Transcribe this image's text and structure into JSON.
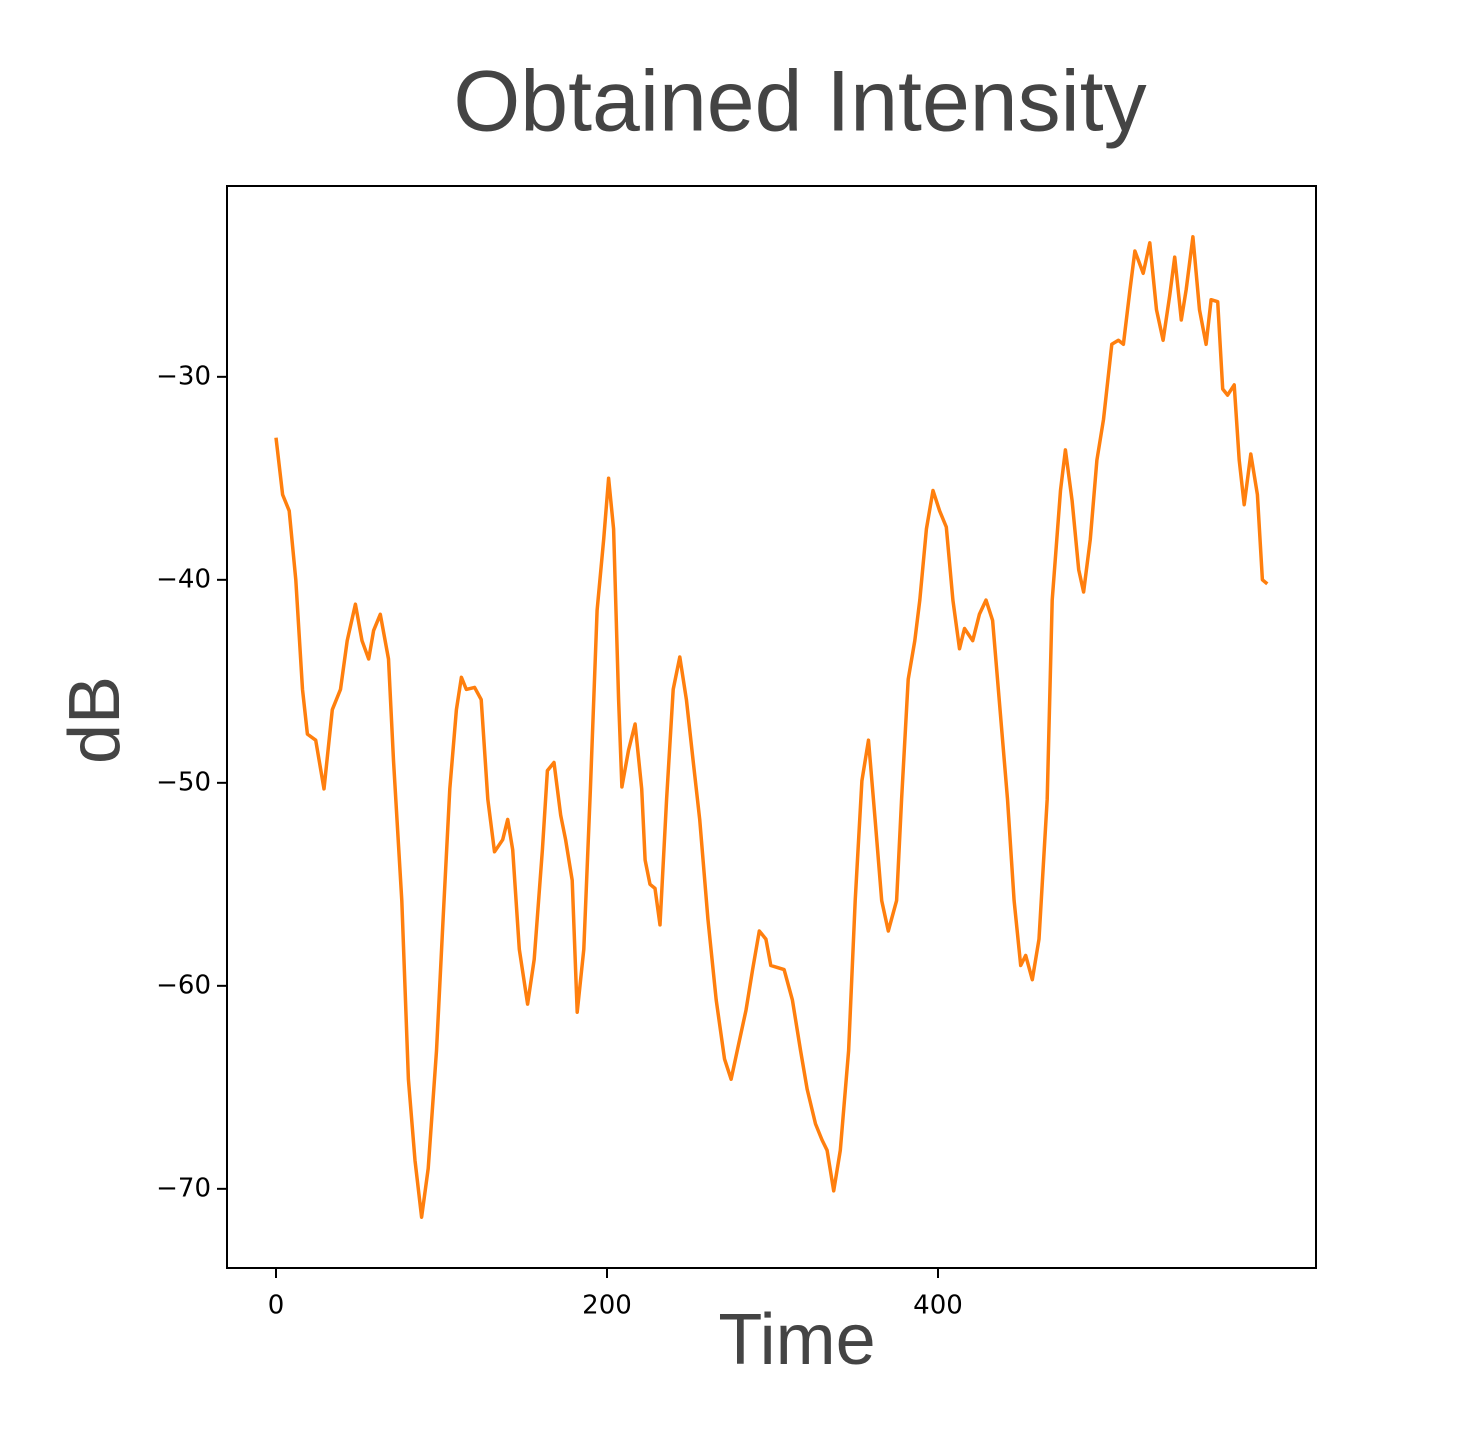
{
  "chart_data": {
    "type": "line",
    "title": "Obtained Intensity",
    "x_label": "Time",
    "y_label": "dB",
    "color": "#ff7f0e",
    "x": [
      0,
      4,
      8,
      12,
      16,
      19,
      24,
      29,
      34,
      39,
      43,
      48,
      52,
      56,
      59,
      63,
      68,
      71,
      76,
      80,
      84,
      88,
      92,
      97,
      101,
      105,
      109,
      112,
      115,
      120,
      124,
      128,
      132,
      137,
      140,
      143,
      147,
      152,
      156,
      161,
      164,
      168,
      172,
      175,
      179,
      182,
      186,
      190,
      194,
      198,
      201,
      204,
      207,
      209,
      213,
      217,
      221,
      223,
      226,
      229,
      232,
      236,
      240,
      244,
      248,
      252,
      256,
      261,
      266,
      271,
      275,
      280,
      284,
      288,
      292,
      296,
      299,
      303,
      307,
      312,
      317,
      321,
      326,
      330,
      333,
      337,
      341,
      346,
      350,
      354,
      358,
      362,
      366,
      370,
      375,
      378,
      382,
      386,
      389,
      393,
      397,
      401,
      405,
      409,
      413,
      416,
      421,
      425,
      429,
      433,
      437,
      442,
      446,
      450,
      453,
      457,
      461,
      466,
      469,
      474,
      477,
      481,
      485,
      488,
      492,
      496,
      500,
      505,
      509,
      512,
      516,
      519,
      524,
      528,
      532,
      536,
      540,
      543,
      547,
      550,
      554,
      558,
      562,
      565,
      569,
      572,
      575,
      579,
      582,
      585,
      589,
      593,
      596,
      599
    ],
    "values": [
      -33,
      -35.8,
      -36.6,
      -40,
      -45.4,
      -47.6,
      -47.9,
      -50.3,
      -46.4,
      -45.4,
      -43,
      -41.2,
      -43,
      -43.9,
      -42.5,
      -41.7,
      -43.9,
      -48.9,
      -55.8,
      -64.6,
      -68.6,
      -71.4,
      -69,
      -63.2,
      -56.7,
      -50.3,
      -46.4,
      -44.8,
      -45.4,
      -45.3,
      -45.9,
      -50.8,
      -53.4,
      -52.8,
      -51.8,
      -53.3,
      -58.2,
      -60.9,
      -58.7,
      -53.3,
      -49.4,
      -49,
      -51.6,
      -52.8,
      -54.8,
      -61.3,
      -58.2,
      -50.3,
      -41.5,
      -38,
      -35,
      -37.5,
      -45.9,
      -50.2,
      -48.4,
      -47.1,
      -50.3,
      -53.8,
      -55,
      -55.2,
      -57,
      -50.8,
      -45.4,
      -43.8,
      -45.9,
      -48.9,
      -51.8,
      -56.7,
      -60.7,
      -63.6,
      -64.6,
      -62.7,
      -61.2,
      -59.2,
      -57.3,
      -57.7,
      -59,
      -59.1,
      -59.2,
      -60.7,
      -63.2,
      -65.1,
      -66.8,
      -67.6,
      -68.1,
      -70.1,
      -68.1,
      -63.2,
      -55.8,
      -49.9,
      -47.9,
      -51.8,
      -55.8,
      -57.3,
      -55.8,
      -50.8,
      -44.9,
      -43,
      -41,
      -37.5,
      -35.6,
      -36.6,
      -37.4,
      -41,
      -43.4,
      -42.4,
      -43,
      -41.7,
      -41,
      -42,
      -45.9,
      -50.8,
      -55.8,
      -59,
      -58.5,
      -59.7,
      -57.7,
      -50.8,
      -41,
      -35.6,
      -33.6,
      -36.1,
      -39.5,
      -40.6,
      -38,
      -34.1,
      -32.1,
      -28.4,
      -28.2,
      -28.4,
      -25.7,
      -23.8,
      -24.9,
      -23.4,
      -26.7,
      -28.2,
      -26,
      -24.1,
      -27.2,
      -25.7,
      -23.1,
      -26.7,
      -28.4,
      -26.2,
      -26.3,
      -30.6,
      -30.9,
      -30.4,
      -34.1,
      -36.3,
      -33.8,
      -35.8,
      -40,
      -40.2
    ],
    "xlim": [
      -29.6,
      628.4
    ],
    "ylim": [
      -73.9,
      -20.6
    ],
    "xticks": [
      0,
      200,
      400
    ],
    "yticks": [
      {
        "value": -30,
        "label": "−30"
      },
      {
        "value": -40,
        "label": "−40"
      },
      {
        "value": -50,
        "label": "−50"
      },
      {
        "value": -60,
        "label": "−60"
      },
      {
        "value": -70,
        "label": "−70"
      }
    ]
  }
}
